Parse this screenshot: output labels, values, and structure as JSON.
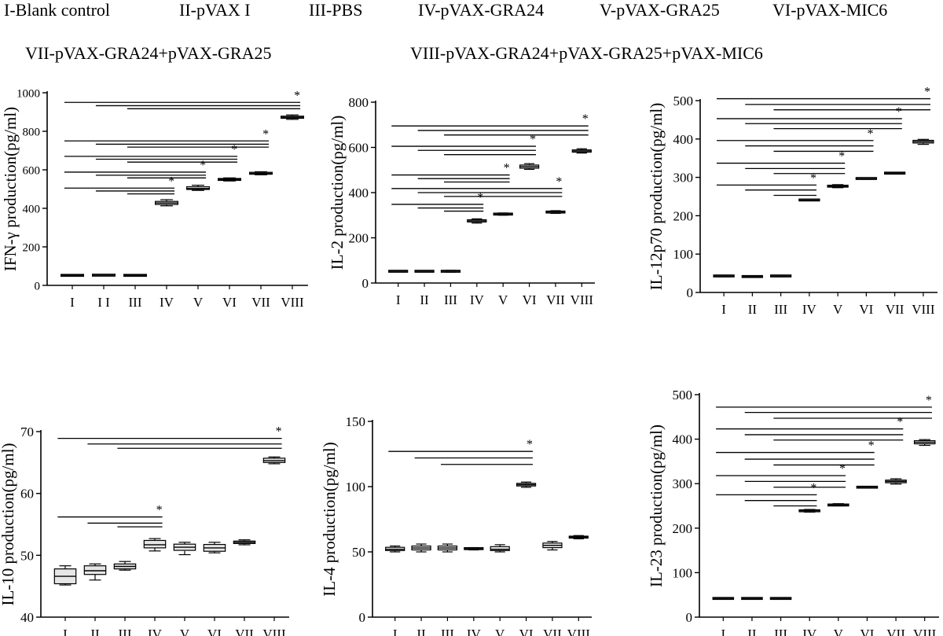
{
  "legend": {
    "row1": [
      "I-Blank control",
      "II-pVAX I",
      "III-PBS",
      "IV-pVAX-GRA24",
      "V-pVAX-GRA25",
      "VI-pVAX-MIC6"
    ],
    "row2": [
      "VII-pVAX-GRA24+pVAX-GRA25",
      "VIII-pVAX-GRA24+pVAX-GRA25+pVAX-MIC6"
    ]
  },
  "chart_data": [
    {
      "type": "box",
      "ylabel": "IFN-γ production(pg/ml)",
      "categories": [
        "I",
        "I I",
        "III",
        "IV",
        "V",
        "VI",
        "VII",
        "VIII"
      ],
      "ylim": [
        0,
        1000
      ],
      "yticks": [
        0,
        200,
        400,
        600,
        800,
        1000
      ],
      "boxes": [
        {
          "min": 50,
          "q1": 51,
          "median": 52,
          "q3": 53,
          "max": 54
        },
        {
          "min": 51,
          "q1": 52,
          "median": 53,
          "q3": 54,
          "max": 55
        },
        {
          "min": 50,
          "q1": 51,
          "median": 52,
          "q3": 53,
          "max": 54
        },
        {
          "min": 413,
          "q1": 420,
          "median": 428,
          "q3": 436,
          "max": 445
        },
        {
          "min": 493,
          "q1": 498,
          "median": 503,
          "q3": 512,
          "max": 520
        },
        {
          "min": 542,
          "q1": 545,
          "median": 550,
          "q3": 555,
          "max": 558
        },
        {
          "min": 574,
          "q1": 577,
          "median": 582,
          "q3": 586,
          "max": 590
        },
        {
          "min": 862,
          "q1": 867,
          "median": 873,
          "q3": 878,
          "max": 885
        }
      ],
      "significance": [
        {
          "target": 3,
          "from": [
            0,
            1,
            2
          ],
          "ys": [
            505,
            490,
            475
          ]
        },
        {
          "target": 4,
          "from": [
            0,
            1,
            2
          ],
          "ys": [
            588,
            572,
            558
          ]
        },
        {
          "target": 5,
          "from": [
            0,
            1,
            2
          ],
          "ys": [
            670,
            655,
            640
          ]
        },
        {
          "target": 6,
          "from": [
            0,
            1,
            2
          ],
          "ys": [
            750,
            733,
            718
          ]
        },
        {
          "target": 7,
          "from": [
            0,
            1,
            2
          ],
          "ys": [
            950,
            933,
            917
          ]
        }
      ],
      "sig_label": "*"
    },
    {
      "type": "box",
      "ylabel": "IL-2 production(pg/ml)",
      "categories": [
        "I",
        "II",
        "III",
        "IV",
        "V",
        "VI",
        "VII",
        "VIII"
      ],
      "ylim": [
        0,
        800
      ],
      "yticks": [
        0,
        200,
        400,
        600,
        800
      ],
      "boxes": [
        {
          "min": 50,
          "q1": 51,
          "median": 52,
          "q3": 53,
          "max": 54
        },
        {
          "min": 50,
          "q1": 51,
          "median": 52,
          "q3": 53,
          "max": 54
        },
        {
          "min": 48,
          "q1": 50,
          "median": 52,
          "q3": 54,
          "max": 56
        },
        {
          "min": 265,
          "q1": 270,
          "median": 275,
          "q3": 280,
          "max": 284
        },
        {
          "min": 300,
          "q1": 302,
          "median": 305,
          "q3": 308,
          "max": 310
        },
        {
          "min": 503,
          "q1": 508,
          "median": 515,
          "q3": 522,
          "max": 528
        },
        {
          "min": 308,
          "q1": 311,
          "median": 314,
          "q3": 317,
          "max": 320
        },
        {
          "min": 575,
          "q1": 579,
          "median": 584,
          "q3": 589,
          "max": 594
        }
      ],
      "significance": [
        {
          "target": 3,
          "from": [
            0,
            1,
            2
          ],
          "ys": [
            348,
            332,
            318
          ]
        },
        {
          "target": 6,
          "from": [
            0,
            1,
            2
          ],
          "ys": [
            418,
            400,
            383
          ]
        },
        {
          "target": 4,
          "from": [
            0,
            1,
            2
          ],
          "ys": [
            478,
            462,
            447
          ]
        },
        {
          "target": 5,
          "from": [
            0,
            1,
            2
          ],
          "ys": [
            605,
            587,
            568
          ]
        },
        {
          "target": 7,
          "from": [
            0,
            1,
            2
          ],
          "ys": [
            695,
            675,
            655
          ]
        }
      ],
      "sig_label": "*"
    },
    {
      "type": "box",
      "ylabel": "IL-12p70 production(pg/ml)",
      "categories": [
        "I",
        "II",
        "III",
        "IV",
        "V",
        "VI",
        "VII",
        "VIII"
      ],
      "ylim": [
        0,
        500
      ],
      "yticks": [
        0,
        100,
        200,
        300,
        400,
        500
      ],
      "boxes": [
        {
          "min": 41,
          "q1": 42,
          "median": 43,
          "q3": 44,
          "max": 45
        },
        {
          "min": 40,
          "q1": 41,
          "median": 41.5,
          "q3": 42,
          "max": 43
        },
        {
          "min": 41,
          "q1": 42,
          "median": 43,
          "q3": 44,
          "max": 45
        },
        {
          "min": 239,
          "q1": 240,
          "median": 241,
          "q3": 242,
          "max": 243
        },
        {
          "min": 273,
          "q1": 275,
          "median": 277,
          "q3": 279,
          "max": 281
        },
        {
          "min": 295,
          "q1": 296,
          "median": 297,
          "q3": 298,
          "max": 299
        },
        {
          "min": 309,
          "q1": 310,
          "median": 311,
          "q3": 312,
          "max": 313
        },
        {
          "min": 386,
          "q1": 389,
          "median": 393,
          "q3": 396,
          "max": 399
        }
      ],
      "significance": [
        {
          "target": 3,
          "from": [
            0,
            1,
            2
          ],
          "ys": [
            280,
            267,
            253
          ]
        },
        {
          "target": 4,
          "from": [
            0,
            1,
            2
          ],
          "ys": [
            337,
            323,
            310
          ]
        },
        {
          "target": 5,
          "from": [
            0,
            1,
            2
          ],
          "ys": [
            396,
            382,
            368
          ]
        },
        {
          "target": 6,
          "from": [
            0,
            1,
            2
          ],
          "ys": [
            453,
            440,
            427
          ]
        },
        {
          "target": 7,
          "from": [
            0,
            1,
            2
          ],
          "ys": [
            505,
            490,
            476
          ]
        }
      ],
      "sig_label": "*"
    },
    {
      "type": "box",
      "ylabel": "IL-10 production(pg/ml)",
      "categories": [
        "I",
        "II",
        "III",
        "IV",
        "V",
        "VI",
        "VII",
        "VIII"
      ],
      "ylim": [
        40,
        70
      ],
      "yticks": [
        40,
        50,
        60,
        70
      ],
      "boxes": [
        {
          "min": 45.2,
          "q1": 45.4,
          "median": 46.6,
          "q3": 47.8,
          "max": 48.3
        },
        {
          "min": 46.0,
          "q1": 46.9,
          "median": 47.5,
          "q3": 48.3,
          "max": 48.6
        },
        {
          "min": 47.6,
          "q1": 47.8,
          "median": 48.2,
          "q3": 48.6,
          "max": 49.0
        },
        {
          "min": 50.7,
          "q1": 51.2,
          "median": 51.7,
          "q3": 52.4,
          "max": 52.7
        },
        {
          "min": 50.1,
          "q1": 50.7,
          "median": 51.3,
          "q3": 51.7,
          "max": 52.1
        },
        {
          "min": 50.4,
          "q1": 50.6,
          "median": 51.2,
          "q3": 51.7,
          "max": 52.1
        },
        {
          "min": 51.7,
          "q1": 51.9,
          "median": 52.1,
          "q3": 52.3,
          "max": 52.5
        },
        {
          "min": 64.8,
          "q1": 65.0,
          "median": 65.3,
          "q3": 65.7,
          "max": 65.9
        }
      ],
      "significance": [
        {
          "target": 3,
          "from": [
            0,
            1,
            2
          ],
          "ys": [
            56.2,
            55.2,
            54.6
          ]
        },
        {
          "target": 7,
          "from": [
            0,
            1,
            2
          ],
          "ys": [
            68.9,
            68.0,
            67.3
          ]
        }
      ],
      "sig_label": "*"
    },
    {
      "type": "box",
      "ylabel": "IL-4 production(pg/ml)",
      "categories": [
        "I",
        "II",
        "III",
        "IV",
        "V",
        "VI",
        "VII",
        "VIII"
      ],
      "ylim": [
        0,
        150
      ],
      "yticks": [
        0,
        50,
        100,
        150
      ],
      "boxes": [
        {
          "min": 50,
          "q1": 51,
          "median": 52,
          "q3": 53.5,
          "max": 54.5
        },
        {
          "min": 50,
          "q1": 51.5,
          "median": 53,
          "q3": 54.5,
          "max": 56
        },
        {
          "min": 50,
          "q1": 51.5,
          "median": 53,
          "q3": 54.5,
          "max": 56
        },
        {
          "min": 51.5,
          "q1": 52,
          "median": 52.5,
          "q3": 53,
          "max": 53.3
        },
        {
          "min": 50,
          "q1": 51,
          "median": 52,
          "q3": 54,
          "max": 55.5
        },
        {
          "min": 99.5,
          "q1": 100.5,
          "median": 101.5,
          "q3": 102.5,
          "max": 103.5
        },
        {
          "min": 51.5,
          "q1": 53,
          "median": 55,
          "q3": 56.5,
          "max": 58
        },
        {
          "min": 60,
          "q1": 60.6,
          "median": 61.3,
          "q3": 62,
          "max": 62.5
        }
      ],
      "significance": [
        {
          "target": 5,
          "from": [
            0,
            1,
            2
          ],
          "ys": [
            127,
            122,
            117
          ]
        }
      ],
      "sig_label": "*"
    },
    {
      "type": "box",
      "ylabel": "IL-23 production(pg/ml)",
      "categories": [
        "I",
        "II",
        "III",
        "IV",
        "V",
        "VI",
        "VII",
        "VIII"
      ],
      "ylim": [
        0,
        500
      ],
      "yticks": [
        0,
        100,
        200,
        300,
        400,
        500
      ],
      "boxes": [
        {
          "min": 41,
          "q1": 41.5,
          "median": 42,
          "q3": 42.5,
          "max": 43
        },
        {
          "min": 41,
          "q1": 41.5,
          "median": 42,
          "q3": 42.5,
          "max": 43
        },
        {
          "min": 41,
          "q1": 41.5,
          "median": 42,
          "q3": 42.5,
          "max": 43
        },
        {
          "min": 236,
          "q1": 238,
          "median": 239,
          "q3": 240,
          "max": 242
        },
        {
          "min": 250,
          "q1": 251,
          "median": 252,
          "q3": 253,
          "max": 255
        },
        {
          "min": 290,
          "q1": 291,
          "median": 292,
          "q3": 293,
          "max": 294
        },
        {
          "min": 299,
          "q1": 302,
          "median": 305,
          "q3": 308,
          "max": 311
        },
        {
          "min": 386,
          "q1": 389,
          "median": 393,
          "q3": 396,
          "max": 399
        }
      ],
      "significance": [
        {
          "target": 3,
          "from": [
            0,
            1,
            2
          ],
          "ys": [
            275,
            262,
            250
          ]
        },
        {
          "target": 4,
          "from": [
            0,
            1,
            2
          ],
          "ys": [
            318,
            305,
            292
          ]
        },
        {
          "target": 5,
          "from": [
            0,
            1,
            2
          ],
          "ys": [
            370,
            355,
            342
          ]
        },
        {
          "target": 6,
          "from": [
            0,
            1,
            2
          ],
          "ys": [
            423,
            410,
            398
          ]
        },
        {
          "target": 7,
          "from": [
            0,
            1,
            2
          ],
          "ys": [
            472,
            460,
            447
          ]
        }
      ],
      "sig_label": "*"
    }
  ]
}
